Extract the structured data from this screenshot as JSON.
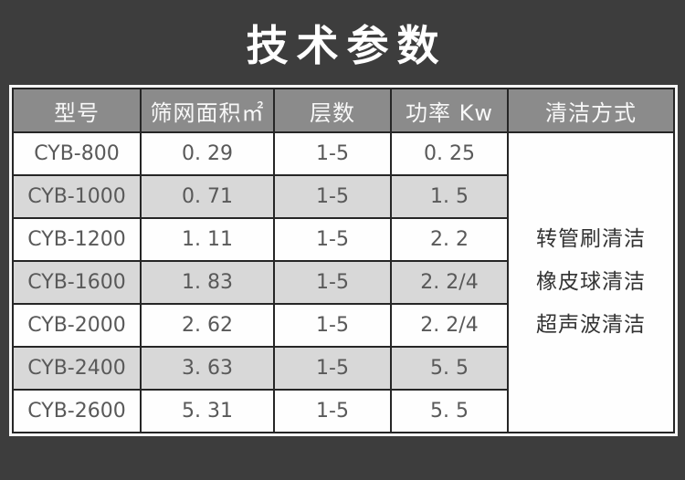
{
  "title": "技术参数",
  "colors": {
    "background": "#3d3d3d",
    "banner_text": "#ffffff",
    "header_bg": "#8b8b8b",
    "header_text": "#f8f8f8",
    "row_bg": "#fefefe",
    "row_alt_bg": "#d8d8d8",
    "grid_line": "#262626",
    "outer_frame": "#f7f7f7",
    "cell_text": "#595959",
    "cleaning_text": "#333333"
  },
  "chart_data": {
    "type": "table",
    "title": "技术参数",
    "columns": [
      "型号",
      "筛网面积㎡",
      "层数",
      "功率 Kw",
      "清洁方式"
    ],
    "rows": [
      [
        "CYB-800",
        "0. 29",
        "1-5",
        "0. 25"
      ],
      [
        "CYB-1000",
        "0. 71",
        "1-5",
        "1. 5"
      ],
      [
        "CYB-1200",
        "1. 11",
        "1-5",
        "2. 2"
      ],
      [
        "CYB-1600",
        "1. 83",
        "1-5",
        "2. 2/4"
      ],
      [
        "CYB-2000",
        "2. 62",
        "1-5",
        "2. 2/4"
      ],
      [
        "CYB-2400",
        "3. 63",
        "1-5",
        "5. 5"
      ],
      [
        "CYB-2600",
        "5. 31",
        "1-5",
        "5. 5"
      ]
    ],
    "merged_last_column": {
      "header": "清洁方式",
      "rowspan": 7,
      "lines": [
        "转管刷清洁",
        "橡皮球清洁",
        "超声波清洁"
      ]
    }
  }
}
